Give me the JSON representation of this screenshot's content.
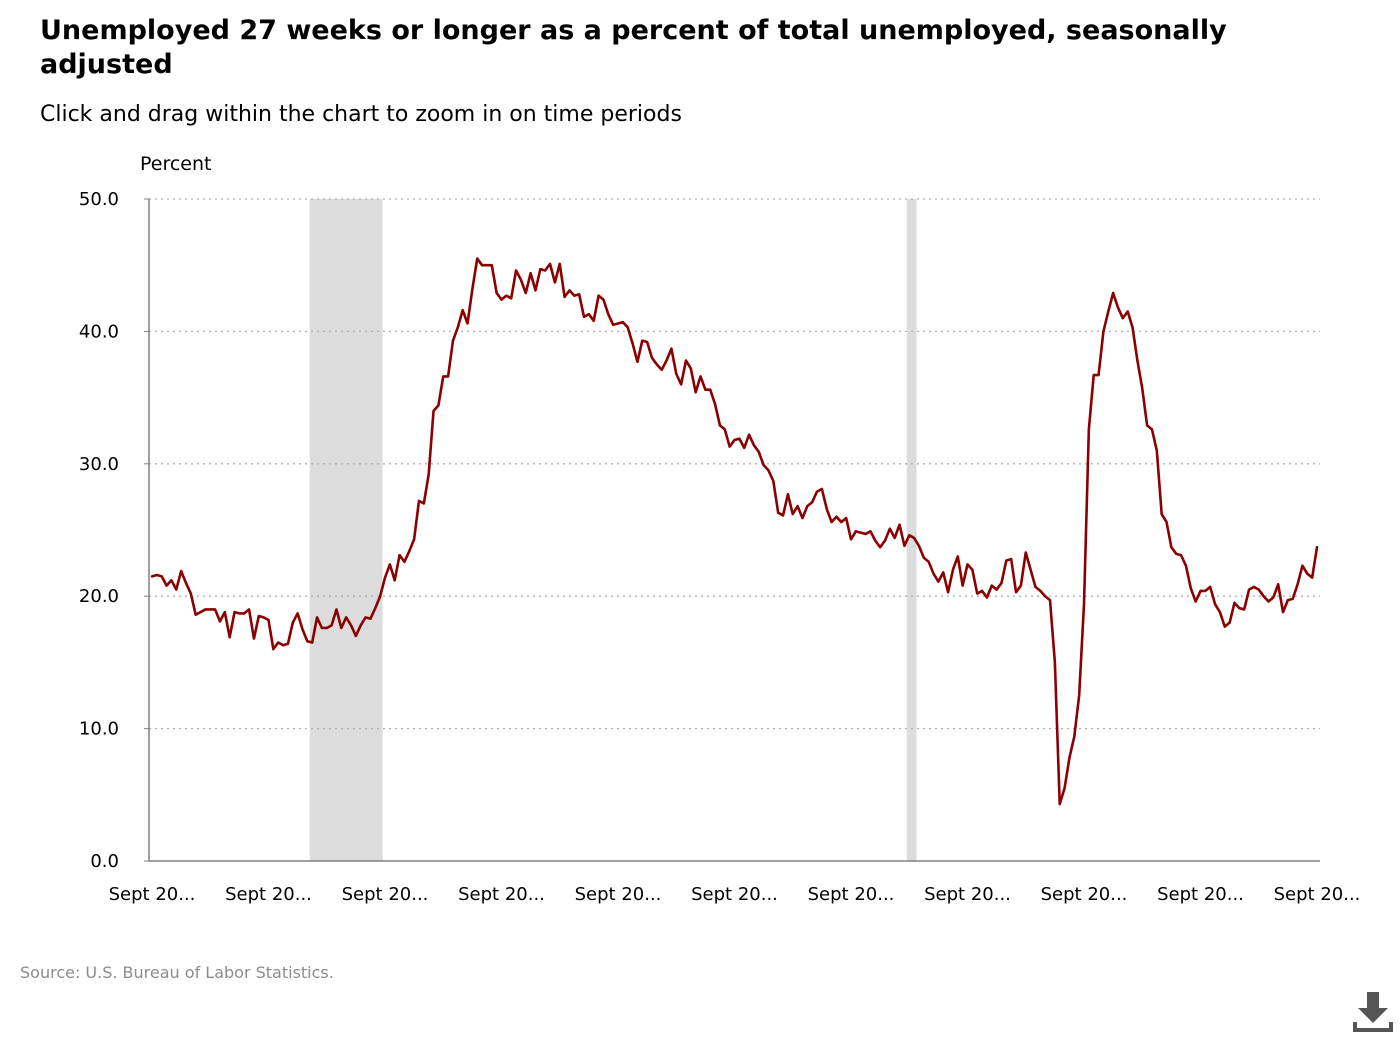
{
  "title": "Unemployed 27 weeks or longer as a percent of total unemployed, seasonally adjusted",
  "subtitle": "Click and drag within the chart to zoom in on time periods",
  "source": "Source: U.S. Bureau of Labor Statistics.",
  "icons": {
    "download": "download-icon"
  },
  "colors": {
    "line": "#8b0000",
    "recession": "#dcdcdc",
    "grid": "#b0b0b0",
    "axis": "#808080"
  },
  "chart_data": {
    "type": "line",
    "title": "Unemployed 27 weeks or longer as a percent of total unemployed, seasonally adjusted",
    "ylabel": "Percent",
    "xlabel": "",
    "ylim": [
      0,
      50
    ],
    "yticks": [
      "0.0",
      "10.0",
      "20.0",
      "30.0",
      "40.0",
      "50.0"
    ],
    "xticks": [
      "Sept 20...",
      "Sept 20...",
      "Sept 20...",
      "Sept 20...",
      "Sept 20...",
      "Sept 20...",
      "Sept 20...",
      "Sept 20...",
      "Sept 20...",
      "Sept 20...",
      "Sept 20..."
    ],
    "grid": "horizontal dotted",
    "x_months_start": 0,
    "recessions": [
      [
        32.5,
        47.5
      ],
      [
        155.5,
        157.5
      ]
    ],
    "series": [
      {
        "values": [
          21.5,
          21.6,
          21.5,
          20.8,
          21.2,
          20.5,
          21.9,
          21.0,
          20.2,
          18.6,
          18.8,
          19.0,
          19.0,
          19.0,
          18.1,
          18.8,
          16.9,
          18.8,
          18.7,
          18.7,
          19.0,
          16.8,
          18.5,
          18.4,
          18.2,
          16.0,
          16.5,
          16.3,
          16.4,
          18.0,
          18.7,
          17.5,
          16.6,
          16.5,
          18.4,
          17.6,
          17.6,
          17.8,
          19.0,
          17.6,
          18.4,
          17.8,
          17.0,
          17.8,
          18.4,
          18.3,
          19.1,
          20.0,
          21.4,
          22.4,
          21.2,
          23.1,
          22.6,
          23.4,
          24.3,
          27.2,
          27.0,
          29.2,
          34.0,
          34.4,
          36.6,
          36.6,
          39.3,
          40.3,
          41.6,
          40.6,
          43.2,
          45.5,
          45.0,
          45.0,
          45.0,
          42.9,
          42.4,
          42.7,
          42.5,
          44.6,
          43.9,
          42.9,
          44.4,
          43.1,
          44.7,
          44.6,
          45.1,
          43.7,
          45.1,
          42.6,
          43.1,
          42.7,
          42.8,
          41.1,
          41.3,
          40.8,
          42.7,
          42.4,
          41.3,
          40.5,
          40.6,
          40.7,
          40.3,
          39.1,
          37.7,
          39.3,
          39.2,
          38.0,
          37.5,
          37.1,
          37.8,
          38.7,
          36.8,
          36.0,
          37.8,
          37.2,
          35.4,
          36.6,
          35.6,
          35.6,
          34.5,
          32.9,
          32.6,
          31.3,
          31.8,
          31.9,
          31.2,
          32.2,
          31.4,
          30.9,
          29.9,
          29.5,
          28.7,
          26.3,
          26.1,
          27.7,
          26.2,
          26.8,
          25.9,
          26.8,
          27.1,
          27.9,
          28.1,
          26.6,
          25.6,
          26.0,
          25.6,
          25.9,
          24.3,
          24.9,
          24.8,
          24.7,
          24.9,
          24.2,
          23.7,
          24.2,
          25.1,
          24.4,
          25.4,
          23.8,
          24.6,
          24.4,
          23.8,
          22.9,
          22.6,
          21.7,
          21.1,
          21.8,
          20.3,
          22.0,
          23.0,
          20.8,
          22.4,
          22.0,
          20.2,
          20.4,
          19.9,
          20.8,
          20.5,
          21.0,
          22.7,
          22.8,
          20.3,
          20.8,
          23.3,
          22.0,
          20.7,
          20.4,
          20.0,
          19.7,
          15.0,
          4.3,
          5.5,
          7.8,
          9.4,
          12.5,
          19.4,
          32.6,
          36.7,
          36.7,
          40.0,
          41.5,
          42.9,
          41.8,
          41.0,
          41.5,
          40.3,
          37.8,
          35.7,
          32.9,
          32.6,
          31.0,
          26.2,
          25.6,
          23.7,
          23.2,
          23.1,
          22.3,
          20.6,
          19.6,
          20.4,
          20.4,
          20.7,
          19.4,
          18.8,
          17.7,
          18.0,
          19.5,
          19.1,
          19.0,
          20.5,
          20.7,
          20.5,
          20.0,
          19.6,
          19.9,
          20.9,
          18.8,
          19.7,
          19.8,
          20.9,
          22.3,
          21.7,
          21.4,
          23.7
        ]
      }
    ]
  }
}
